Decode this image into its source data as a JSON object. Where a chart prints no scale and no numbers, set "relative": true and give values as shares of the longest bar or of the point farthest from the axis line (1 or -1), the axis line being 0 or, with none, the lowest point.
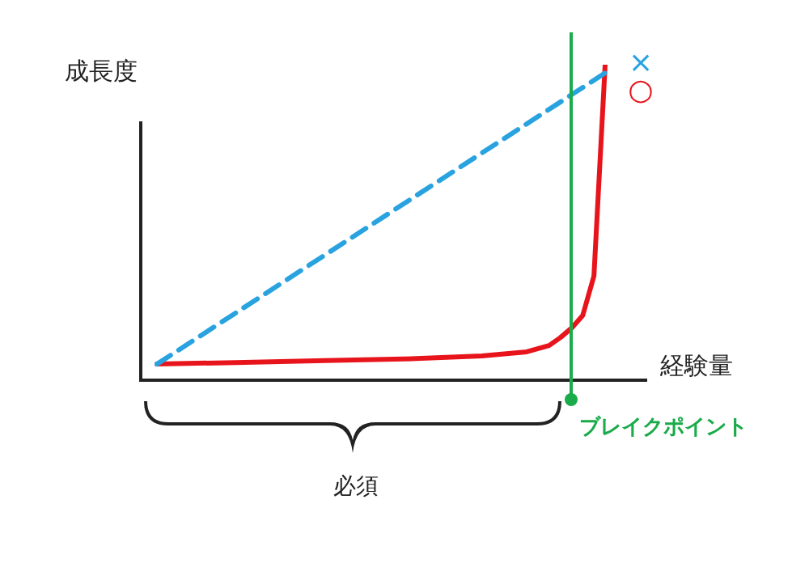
{
  "chart_data": {
    "type": "line",
    "relative": true,
    "ylabel": "成長度",
    "xlabel": "経験量",
    "legend": false,
    "grid": false,
    "marker": "none",
    "categories": [
      null,
      null,
      null,
      null,
      null,
      null,
      null,
      null,
      null,
      null,
      null,
      null,
      null,
      null,
      null,
      null,
      null,
      null,
      null,
      null,
      null,
      null,
      null,
      null,
      null,
      null,
      null,
      null,
      null,
      null,
      null,
      null,
      null,
      null,
      null,
      null,
      null,
      null,
      null,
      null,
      null
    ],
    "series": [
      {
        "name": "×",
        "color": "#29a3e0",
        "line_style": "dashed",
        "values": [
          0.051,
          null,
          null,
          null,
          null,
          null,
          null,
          null,
          null,
          null,
          null,
          null,
          null,
          null,
          null,
          null,
          null,
          null,
          null,
          null,
          null,
          null,
          null,
          null,
          null,
          null,
          null,
          null,
          null,
          null,
          null,
          null,
          null,
          null,
          null,
          null,
          null,
          null,
          null,
          null,
          0.974
        ]
      },
      {
        "name": "○",
        "color": "#e8141c",
        "line_style": "solid",
        "values": [
          0.051,
          null,
          null,
          null,
          null,
          null,
          null,
          0.056,
          null,
          null,
          null,
          null,
          null,
          null,
          null,
          0.062,
          null,
          null,
          null,
          null,
          null,
          null,
          0.067,
          null,
          null,
          null,
          null,
          null,
          null,
          0.077,
          null,
          null,
          null,
          0.09,
          null,
          0.11,
          0.135,
          0.165,
          0.205,
          0.33,
          1.0
        ]
      }
    ],
    "annotations": [
      "必須",
      "ブレイクポイント"
    ]
  }
}
